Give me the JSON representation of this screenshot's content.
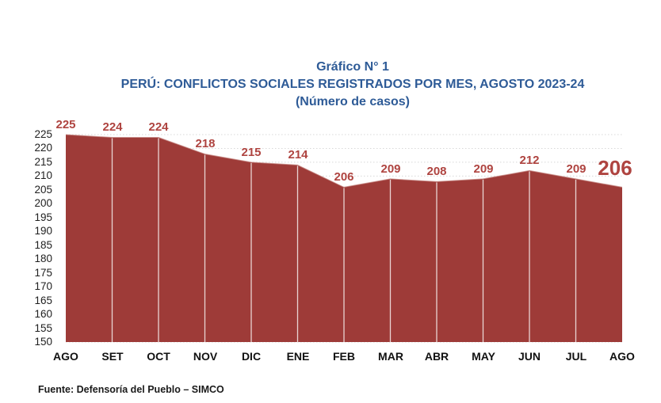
{
  "title": {
    "line1": "Gráfico N° 1",
    "line2": "PERÚ: CONFLICTOS SOCIALES REGISTRADOS POR MES, AGOSTO 2023-24",
    "line3": "(Número de casos)"
  },
  "source": "Fuente: Defensoría del Pueblo – SIMCO",
  "colors": {
    "title_text": "#2E5B97",
    "area_fill": "#9E3B38",
    "area_edge": "#C98E89",
    "data_label": "#AF4440",
    "axis_text": "#1F1F1F",
    "gridline": "#D8D8D8",
    "month_separator": "rgba(255,255,255,0.78)"
  },
  "chart_data": {
    "type": "area",
    "title": "PERÚ: CONFLICTOS SOCIALES REGISTRADOS POR MES, AGOSTO 2023-24",
    "subtitle": "(Número de casos)",
    "categories": [
      "AGO",
      "SET",
      "OCT",
      "NOV",
      "DIC",
      "ENE",
      "FEB",
      "MAR",
      "ABR",
      "MAY",
      "JUN",
      "JUL",
      "AGO"
    ],
    "values": [
      225,
      224,
      224,
      218,
      215,
      214,
      206,
      209,
      208,
      209,
      212,
      209,
      206
    ],
    "xlabel": "",
    "ylabel": "",
    "ylim": [
      150,
      225
    ],
    "ytick_step": 5,
    "yticks": [
      150,
      155,
      160,
      165,
      170,
      175,
      180,
      185,
      190,
      195,
      200,
      205,
      210,
      215,
      220,
      225
    ],
    "grid": "horizontal-dotted",
    "legend": false,
    "data_labels_shown": true,
    "last_label_emphasized": true
  }
}
